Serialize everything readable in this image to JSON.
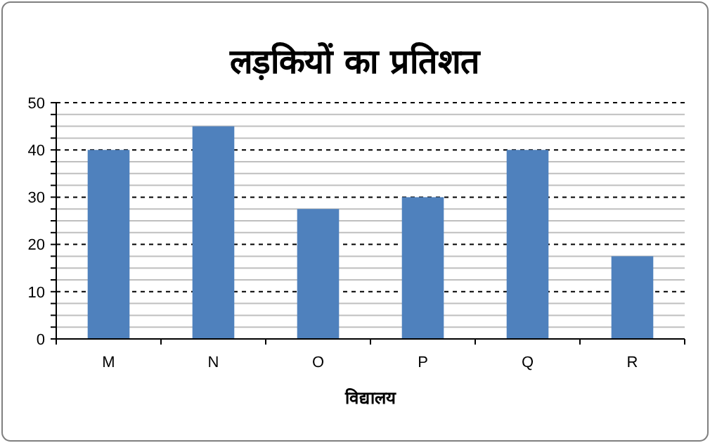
{
  "chart_data": {
    "type": "bar",
    "title": "लड़कियों का प्रतिशत",
    "xlabel": "विद्यालय",
    "categories": [
      "M",
      "N",
      "O",
      "P",
      "Q",
      "R"
    ],
    "values": [
      40,
      45,
      27.5,
      30,
      40,
      17.5
    ],
    "color": "#4f81bd",
    "ylim": [
      0,
      50
    ],
    "yticks": [
      0,
      {
        "value": 2.5,
        "label": null
      },
      {
        "value": 5,
        "label": null
      },
      {
        "value": 7.5,
        "label": null
      },
      10,
      {
        "value": 12.5,
        "label": null
      },
      {
        "value": 15,
        "label": null
      },
      {
        "value": 17.5,
        "label": null
      },
      20,
      {
        "value": 22.5,
        "label": null
      },
      {
        "value": 25,
        "label": null
      },
      {
        "value": 27.5,
        "label": null
      },
      30,
      {
        "value": 32.5,
        "label": null
      },
      {
        "value": 35,
        "label": null
      },
      {
        "value": 37.5,
        "label": null
      },
      40,
      {
        "value": 42.5,
        "label": null
      },
      {
        "value": 45,
        "label": null
      },
      {
        "value": 47.5,
        "label": null
      },
      50
    ],
    "grid": "y"
  }
}
